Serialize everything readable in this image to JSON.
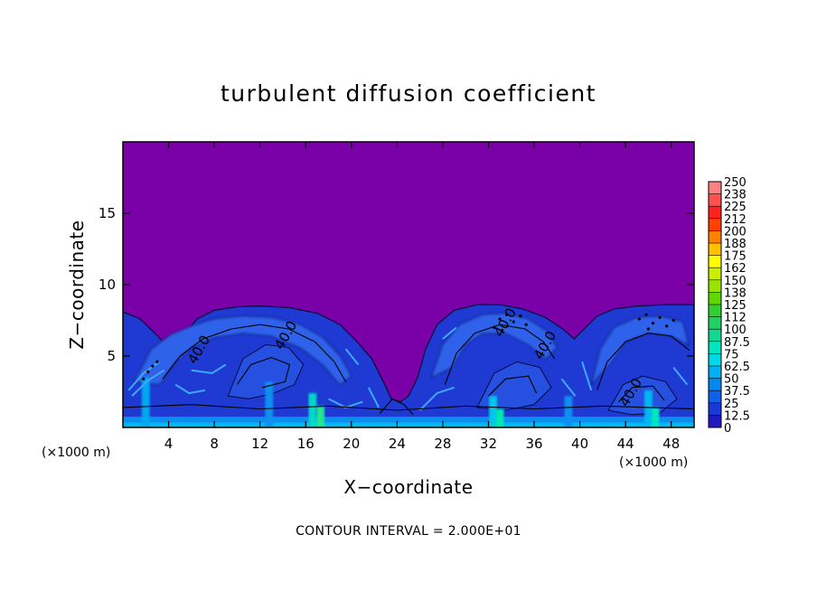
{
  "chart_data": {
    "type": "heatmap",
    "title": "turbulent diffusion coefficient",
    "xlabel": "X−coordinate",
    "ylabel": "Z−coordinate",
    "x_unit": "(×1000 m)",
    "y_unit": "(×1000 m)",
    "xlim": [
      0,
      50
    ],
    "ylim": [
      0,
      20
    ],
    "x_ticks": [
      4,
      8,
      12,
      16,
      20,
      24,
      28,
      32,
      36,
      40,
      44,
      48
    ],
    "y_ticks": [
      5,
      10,
      15
    ],
    "footer": "CONTOUR INTERVAL = 2.000E+01",
    "contour_labels": [
      {
        "text": "40.0",
        "x": 7.0,
        "z": 5.3
      },
      {
        "text": "40.0",
        "x": 14.6,
        "z": 6.3
      },
      {
        "text": "40.0",
        "x": 33.8,
        "z": 7.2
      },
      {
        "text": "40.0",
        "x": 37.3,
        "z": 5.6
      },
      {
        "text": "40.0",
        "x": 44.8,
        "z": 2.3
      }
    ],
    "colorbar": {
      "labels": [
        "250",
        "238",
        "225",
        "212",
        "200",
        "188",
        "175",
        "162",
        "150",
        "138",
        "125",
        "112",
        "100",
        "87.5",
        "75",
        "62.5",
        "50",
        "37.5",
        "25",
        "12.5",
        "0"
      ],
      "colors": [
        "#ff8080",
        "#ff5050",
        "#ff2020",
        "#ff4000",
        "#ff8000",
        "#ffc000",
        "#ffff00",
        "#c8f000",
        "#98e400",
        "#60d800",
        "#30d030",
        "#20d060",
        "#10d890",
        "#00e8c0",
        "#00d8e8",
        "#00b0f0",
        "#0088f0",
        "#1060e8",
        "#1838d8",
        "#2018c0",
        "#7a00a8"
      ]
    },
    "background_color": "#7a00a8",
    "thermals": [
      {
        "x_left": 1,
        "x_right": 24,
        "top_z": 8.5
      },
      {
        "x_left": 25,
        "x_right": 40,
        "top_z": 8.5
      },
      {
        "x_left": 40,
        "x_right": 50,
        "top_z": 8.5
      }
    ]
  }
}
